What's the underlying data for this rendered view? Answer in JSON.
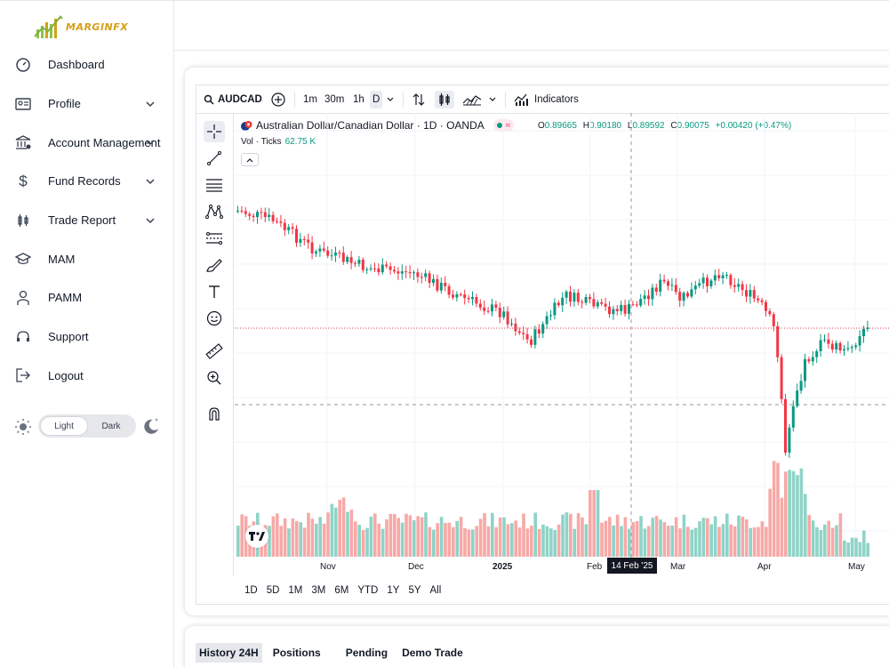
{
  "brand": {
    "logo_text": "MARGINFX",
    "accent": "#d4a017"
  },
  "sidebar": {
    "items": [
      {
        "label": "Dashboard",
        "icon": "gauge-icon",
        "expandable": false
      },
      {
        "label": "Profile",
        "icon": "id-card-icon",
        "expandable": true
      },
      {
        "label": "Account Management",
        "icon": "bank-icon",
        "expandable": true
      },
      {
        "label": "Fund Records",
        "icon": "dollar-icon",
        "expandable": true
      },
      {
        "label": "Trade Report",
        "icon": "candles-icon",
        "expandable": true
      },
      {
        "label": "MAM",
        "icon": "graduation-cap-icon",
        "expandable": false
      },
      {
        "label": "PAMM",
        "icon": "user-icon",
        "expandable": false
      },
      {
        "label": "Support",
        "icon": "headset-icon",
        "expandable": false
      },
      {
        "label": "Logout",
        "icon": "logout-icon",
        "expandable": false
      }
    ],
    "theme": {
      "light": "Light",
      "dark": "Dark",
      "selected": "Light"
    }
  },
  "chart_toolbar": {
    "symbol": "AUDCAD",
    "intervals": [
      "1m",
      "30m",
      "1h",
      "D"
    ],
    "selected_interval": "D",
    "indicators_label": "Indicators"
  },
  "chart_legend": {
    "title": "Australian Dollar/Canadian Dollar · 1D · OANDA",
    "o_label": "O",
    "o": "0.89665",
    "h_label": "H",
    "h": "0.90180",
    "l_label": "L",
    "l": "0.89592",
    "c_label": "C",
    "c": "0.90075",
    "change": "+0.00420 (+0.47%)",
    "vol_label": "Vol · Ticks",
    "vol_value": "62.75 K"
  },
  "chart_xaxis": {
    "labels": [
      "Nov",
      "Dec",
      "2025",
      "Feb",
      "Mar",
      "Apr",
      "May"
    ],
    "crosshair_label": "14 Feb '25"
  },
  "chart_ranges": [
    "1D",
    "5D",
    "1M",
    "3M",
    "6M",
    "YTD",
    "1Y",
    "5Y",
    "All"
  ],
  "colors": {
    "up": "#089981",
    "down": "#f23645",
    "vol_up": "#8fd3c7",
    "vol_down": "#f7a9a7"
  },
  "tabs": {
    "items": [
      "History 24H",
      "Positions",
      "Pending",
      "Demo Trade"
    ],
    "active": "History 24H"
  }
}
